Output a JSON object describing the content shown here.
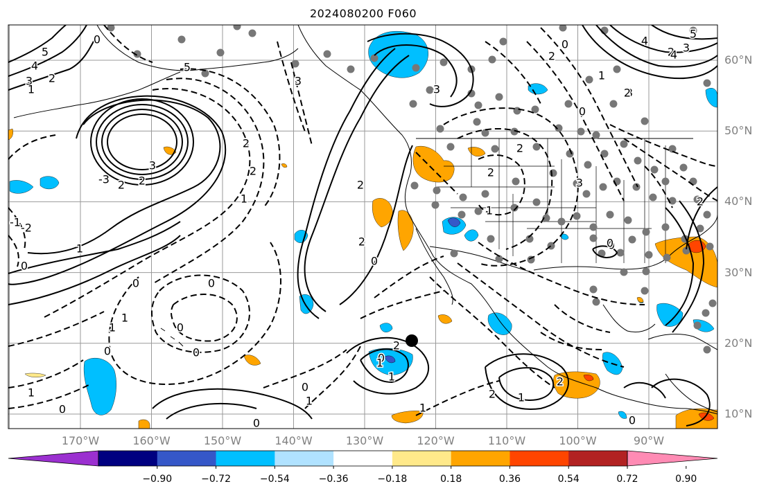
{
  "title": "2024080200 F060",
  "lat_labels": [
    {
      "text": "60°N",
      "value": 60
    },
    {
      "text": "50°N",
      "value": 50
    },
    {
      "text": "40°N",
      "value": 40
    },
    {
      "text": "30°N",
      "value": 30
    },
    {
      "text": "20°N",
      "value": 20
    },
    {
      "text": "10°N",
      "value": 10
    }
  ],
  "lon_labels": [
    {
      "text": "170°W",
      "value": -170
    },
    {
      "text": "160°W",
      "value": -160
    },
    {
      "text": "150°W",
      "value": -150
    },
    {
      "text": "140°W",
      "value": -140
    },
    {
      "text": "130°W",
      "value": -130
    },
    {
      "text": "120°W",
      "value": -120
    },
    {
      "text": "110°W",
      "value": -110
    },
    {
      "text": "100°W",
      "value": -100
    },
    {
      "text": "90°W",
      "value": -90
    }
  ],
  "colorbar": {
    "colors": [
      "#9b30d0",
      "#000080",
      "#3557c8",
      "#00bfff",
      "#b0e2ff",
      "#ffffff",
      "#ffe98a",
      "#ffa500",
      "#ff4500",
      "#b22222",
      "#ff8bb4"
    ],
    "tick_labels": [
      "−0.90",
      "−0.72",
      "−0.54",
      "−0.36",
      "−0.18",
      "0.18",
      "0.36",
      "0.54",
      "0.72",
      "0.90"
    ]
  },
  "contour_labels": [
    "5",
    "4",
    "3",
    "2",
    "1",
    "0",
    "-1",
    "-2",
    "-3",
    "5",
    "3",
    "2",
    "2",
    "1",
    "0",
    "3",
    "2",
    "2",
    "1",
    "0",
    "0",
    "2",
    "0",
    "2",
    "3",
    "2",
    "1",
    "0",
    "1",
    "2",
    "1",
    "2",
    "0",
    "1",
    "2",
    "0",
    "3",
    "4",
    "2",
    "0",
    "3",
    "2",
    "2",
    "1",
    "0",
    "1",
    "0",
    "0",
    "0",
    "1",
    "1",
    "0",
    "1",
    "0",
    "0",
    "2",
    "3",
    "5",
    "4",
    "3",
    "2",
    "1",
    "0"
  ]
}
